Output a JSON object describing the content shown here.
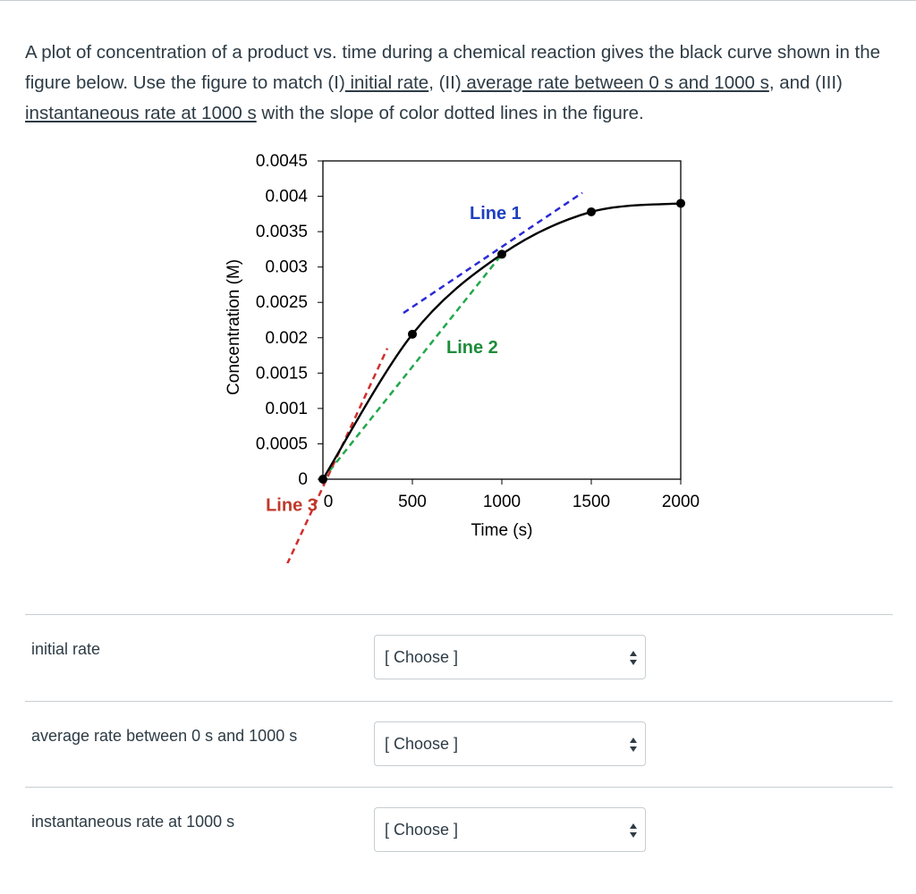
{
  "question": {
    "part1": "A plot of concentration of a product vs. time during a chemical reaction gives the black curve shown in the figure below. Use the figure to match (I)",
    "link1": " initial rate",
    "part2": ", (II)",
    "link2": " average rate between 0 s and 1000 s",
    "part3": ", and (III) ",
    "link3": "instantaneous rate at 1000 s",
    "part4": " with the slope of color dotted lines in the figure."
  },
  "chart_data": {
    "type": "line",
    "xlabel": "Time (s)",
    "ylabel": "Concentration (M)",
    "xlim": [
      0,
      2000
    ],
    "ylim": [
      0,
      0.0045
    ],
    "x_ticks": [
      "0",
      "500",
      "1000",
      "1500",
      "2000"
    ],
    "y_ticks": [
      "0",
      "0.0005",
      "0.001",
      "0.0015",
      "0.002",
      "0.0025",
      "0.003",
      "0.0035",
      "0.004",
      "0.0045"
    ],
    "series": [
      {
        "x": [
          0,
          500,
          1000,
          1500,
          2000
        ],
        "y": [
          0,
          0.00205,
          0.00318,
          0.00378,
          0.0039
        ],
        "color": "#000000",
        "markers": true
      }
    ],
    "annotations": [
      {
        "label": "Line 1",
        "color": "#2a2ad6",
        "label_color": "#1f3fbf",
        "x": [
          450,
          1450
        ],
        "y": [
          0.00235,
          0.00405
        ]
      },
      {
        "label": "Line 2",
        "color": "#21a84a",
        "label_color": "#1e8c3a",
        "x": [
          0,
          1000
        ],
        "y": [
          0,
          0.00318
        ]
      },
      {
        "label": "Line 3",
        "color": "#d12e2e",
        "label_color": "#c0392b",
        "x": [
          -200,
          360
        ],
        "y": [
          -0.0012,
          0.00185
        ]
      }
    ]
  },
  "matches": [
    {
      "label": "initial rate",
      "select": "[ Choose ]"
    },
    {
      "label": "average rate between 0 s and 1000 s",
      "select": "[ Choose ]"
    },
    {
      "label": "instantaneous rate at 1000 s",
      "select": "[ Choose ]"
    }
  ]
}
